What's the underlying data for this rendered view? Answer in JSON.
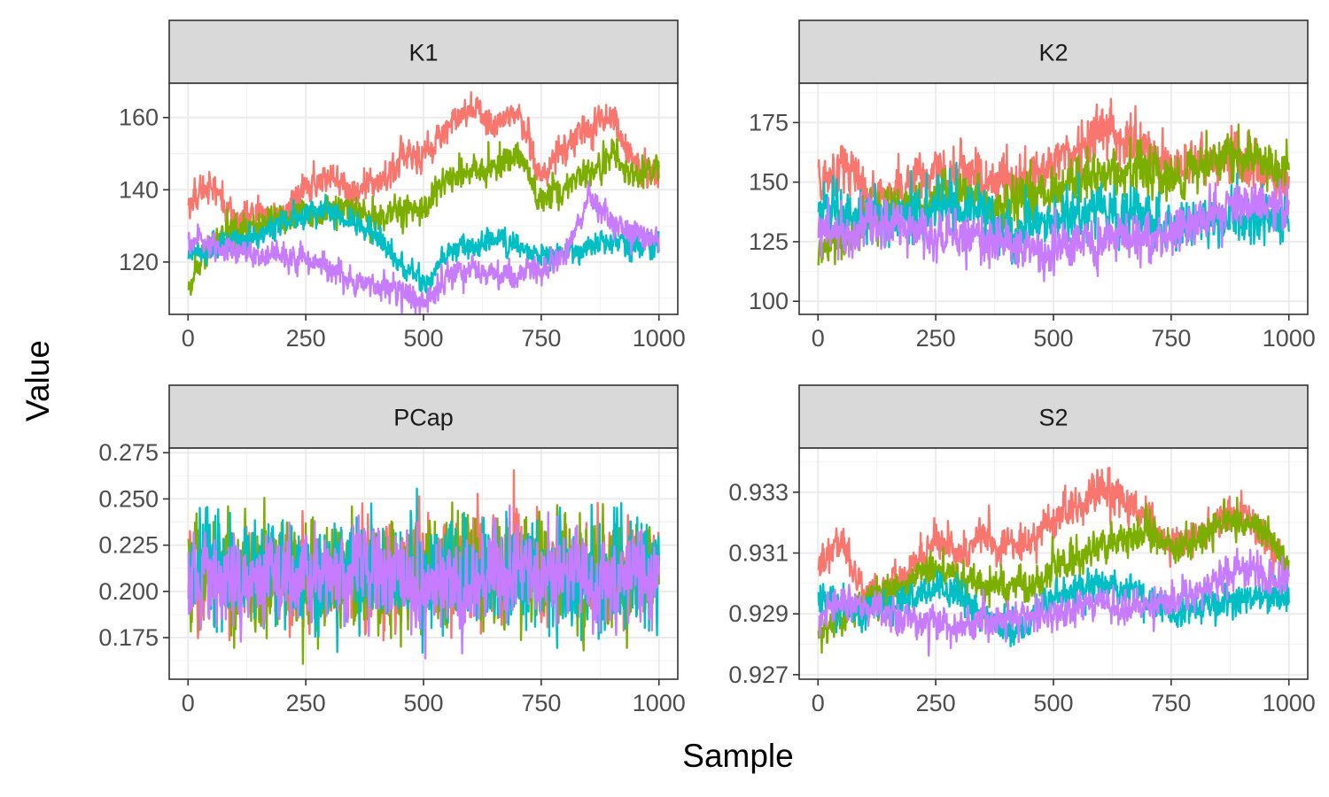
{
  "chart_data": {
    "type": "line",
    "layout": "facet-grid-2x2",
    "xlabel": "Sample",
    "ylabel": "Value",
    "grid": true,
    "legend": "none",
    "series_colors": [
      "#F8766D",
      "#7CAE00",
      "#00BFC4",
      "#C77CFF"
    ],
    "panels": [
      {
        "strip": "K1",
        "xlim": [
          -40,
          1040
        ],
        "ylim": [
          105.5,
          169.5
        ],
        "xticks": [
          0,
          250,
          500,
          750,
          1000
        ],
        "xtick_labels": [
          "0",
          "250",
          "500",
          "750",
          "1000"
        ],
        "yticks": [
          120,
          140,
          160
        ],
        "ytick_labels": [
          "120",
          "140",
          "160"
        ],
        "series": [
          {
            "color": "#F8766D",
            "amp": 3.2,
            "x": [
              0,
              50,
              100,
              150,
              200,
              250,
              300,
              350,
              400,
              450,
              500,
              550,
              600,
              650,
              700,
              750,
              800,
              850,
              900,
              950,
              1000
            ],
            "values": [
              136,
              142,
              131,
              133,
              132,
              140,
              145,
              139,
              141,
              148,
              150,
              157,
              163,
              158,
              162,
              143,
              152,
              157,
              161,
              146,
              144
            ]
          },
          {
            "color": "#7CAE00",
            "amp": 3.0,
            "x": [
              0,
              50,
              100,
              150,
              200,
              250,
              300,
              350,
              400,
              450,
              500,
              550,
              600,
              650,
              700,
              750,
              800,
              850,
              900,
              950,
              1000
            ],
            "values": [
              112,
              126,
              128,
              130,
              133,
              134,
              133,
              135,
              132,
              134,
              135,
              143,
              145,
              146,
              150,
              137,
              141,
              145,
              150,
              143,
              148
            ]
          },
          {
            "color": "#00BFC4",
            "amp": 2.4,
            "x": [
              0,
              50,
              100,
              150,
              200,
              250,
              300,
              350,
              400,
              450,
              500,
              550,
              600,
              650,
              700,
              750,
              800,
              850,
              900,
              950,
              1000
            ],
            "values": [
              122,
              124,
              126,
              127,
              131,
              133,
              135,
              131,
              127,
              119,
              114,
              122,
              125,
              126,
              125,
              121,
              123,
              124,
              126,
              124,
              126
            ]
          },
          {
            "color": "#C77CFF",
            "amp": 2.6,
            "x": [
              0,
              50,
              100,
              150,
              200,
              250,
              300,
              350,
              400,
              450,
              500,
              550,
              600,
              650,
              700,
              750,
              800,
              850,
              900,
              950,
              1000
            ],
            "values": [
              126,
              124,
              123,
              122,
              121,
              121,
              119,
              115,
              113,
              112,
              108,
              116,
              118,
              117,
              116,
              118,
              122,
              138,
              131,
              128,
              127
            ]
          }
        ]
      },
      {
        "strip": "K2",
        "xlim": [
          -40,
          1040
        ],
        "ylim": [
          94.5,
          191.5
        ],
        "xticks": [
          0,
          250,
          500,
          750,
          1000
        ],
        "xtick_labels": [
          "0",
          "250",
          "500",
          "750",
          "1000"
        ],
        "yticks": [
          100,
          125,
          150,
          175
        ],
        "ytick_labels": [
          "100",
          "125",
          "150",
          "175"
        ],
        "series": [
          {
            "color": "#F8766D",
            "amp": 7,
            "x": [
              0,
              50,
              100,
              150,
              200,
              250,
              300,
              350,
              400,
              450,
              500,
              550,
              600,
              650,
              700,
              750,
              800,
              850,
              900,
              950,
              1000
            ],
            "values": [
              147,
              160,
              145,
              145,
              150,
              151,
              155,
              150,
              150,
              152,
              158,
              162,
              172,
              168,
              165,
              155,
              158,
              160,
              162,
              155,
              150
            ]
          },
          {
            "color": "#7CAE00",
            "amp": 7,
            "x": [
              0,
              50,
              100,
              150,
              200,
              250,
              300,
              350,
              400,
              450,
              500,
              550,
              600,
              650,
              700,
              750,
              800,
              850,
              900,
              950,
              1000
            ],
            "values": [
              122,
              124,
              133,
              138,
              140,
              145,
              145,
              143,
              140,
              145,
              147,
              150,
              152,
              155,
              156,
              152,
              155,
              160,
              162,
              158,
              154
            ]
          },
          {
            "color": "#00BFC4",
            "amp": 7.5,
            "x": [
              0,
              50,
              100,
              150,
              200,
              250,
              300,
              350,
              400,
              450,
              500,
              550,
              600,
              650,
              700,
              750,
              800,
              850,
              900,
              950,
              1000
            ],
            "values": [
              138,
              136,
              135,
              135,
              138,
              140,
              141,
              138,
              128,
              130,
              135,
              137,
              138,
              136,
              137,
              130,
              133,
              135,
              138,
              136,
              135
            ]
          },
          {
            "color": "#C77CFF",
            "amp": 7,
            "x": [
              0,
              50,
              100,
              150,
              200,
              250,
              300,
              350,
              400,
              450,
              500,
              550,
              600,
              650,
              700,
              750,
              800,
              850,
              900,
              950,
              1000
            ],
            "values": [
              130,
              128,
              133,
              132,
              130,
              128,
              127,
              126,
              125,
              122,
              120,
              124,
              126,
              127,
              125,
              128,
              132,
              138,
              142,
              141,
              140
            ]
          }
        ]
      },
      {
        "strip": "PCap",
        "xlim": [
          -40,
          1040
        ],
        "ylim": [
          0.1525,
          0.2775
        ],
        "xticks": [
          0,
          250,
          500,
          750,
          1000
        ],
        "xtick_labels": [
          "0",
          "250",
          "500",
          "750",
          "1000"
        ],
        "yticks": [
          0.175,
          0.2,
          0.225,
          0.25,
          0.275
        ],
        "ytick_labels": [
          "0.175",
          "0.200",
          "0.225",
          "0.250",
          "0.275"
        ],
        "series": [
          {
            "color": "#F8766D",
            "amp": 0.019,
            "x": [
              0,
              250,
              500,
              750,
              1000
            ],
            "values": [
              0.209,
              0.21,
              0.21,
              0.209,
              0.209
            ]
          },
          {
            "color": "#7CAE00",
            "amp": 0.021,
            "x": [
              0,
              250,
              500,
              750,
              1000
            ],
            "values": [
              0.209,
              0.21,
              0.209,
              0.21,
              0.209
            ]
          },
          {
            "color": "#00BFC4",
            "amp": 0.021,
            "x": [
              0,
              250,
              500,
              750,
              1000
            ],
            "values": [
              0.209,
              0.209,
              0.21,
              0.21,
              0.209
            ]
          },
          {
            "color": "#C77CFF",
            "amp": 0.017,
            "x": [
              0,
              250,
              500,
              750,
              1000
            ],
            "values": [
              0.209,
              0.209,
              0.209,
              0.209,
              0.209
            ]
          }
        ]
      },
      {
        "strip": "S2",
        "xlim": [
          -40,
          1040
        ],
        "ylim": [
          0.92685,
          0.93445
        ],
        "xticks": [
          0,
          250,
          500,
          750,
          1000
        ],
        "xtick_labels": [
          "0",
          "250",
          "500",
          "750",
          "1000"
        ],
        "yticks": [
          0.927,
          0.929,
          0.931,
          0.933
        ],
        "ytick_labels": [
          "0.927",
          "0.929",
          "0.931",
          "0.933"
        ],
        "series": [
          {
            "color": "#F8766D",
            "amp": 0.00045,
            "x": [
              0,
              50,
              100,
              150,
              200,
              250,
              300,
              350,
              400,
              450,
              500,
              550,
              600,
              650,
              700,
              750,
              800,
              850,
              900,
              950,
              1000
            ],
            "values": [
              0.9305,
              0.9315,
              0.9295,
              0.93,
              0.9305,
              0.9315,
              0.931,
              0.9315,
              0.931,
              0.9315,
              0.932,
              0.9325,
              0.9332,
              0.9326,
              0.9322,
              0.931,
              0.9315,
              0.932,
              0.9325,
              0.9315,
              0.9305
            ]
          },
          {
            "color": "#7CAE00",
            "amp": 0.0004,
            "x": [
              0,
              50,
              100,
              150,
              200,
              250,
              300,
              350,
              400,
              450,
              500,
              550,
              600,
              650,
              700,
              750,
              800,
              850,
              900,
              950,
              1000
            ],
            "values": [
              0.9285,
              0.9288,
              0.9295,
              0.9298,
              0.93,
              0.9305,
              0.9302,
              0.93,
              0.9298,
              0.93,
              0.9305,
              0.9308,
              0.9312,
              0.9315,
              0.9318,
              0.9312,
              0.9315,
              0.9318,
              0.932,
              0.9318,
              0.9305
            ]
          },
          {
            "color": "#00BFC4",
            "amp": 0.0004,
            "x": [
              0,
              50,
              100,
              150,
              200,
              250,
              300,
              350,
              400,
              450,
              500,
              550,
              600,
              650,
              700,
              750,
              800,
              850,
              900,
              950,
              1000
            ],
            "values": [
              0.9295,
              0.9292,
              0.929,
              0.9293,
              0.9296,
              0.9298,
              0.9296,
              0.929,
              0.9285,
              0.9288,
              0.9295,
              0.9298,
              0.93,
              0.9298,
              0.9297,
              0.929,
              0.9292,
              0.9293,
              0.9295,
              0.9296,
              0.9297
            ]
          },
          {
            "color": "#C77CFF",
            "amp": 0.0004,
            "x": [
              0,
              50,
              100,
              150,
              200,
              250,
              300,
              350,
              400,
              450,
              500,
              550,
              600,
              650,
              700,
              750,
              800,
              850,
              900,
              950,
              1000
            ],
            "values": [
              0.929,
              0.9295,
              0.9293,
              0.929,
              0.9288,
              0.9287,
              0.9285,
              0.9287,
              0.9288,
              0.929,
              0.929,
              0.9292,
              0.9294,
              0.9292,
              0.9293,
              0.9294,
              0.9298,
              0.9302,
              0.9305,
              0.9303,
              0.93
            ]
          }
        ]
      }
    ]
  }
}
